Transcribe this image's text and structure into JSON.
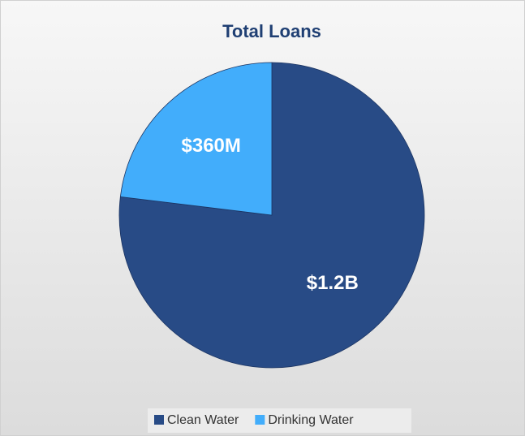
{
  "chart_data": {
    "type": "pie",
    "title": "Total Loans",
    "categories": [
      "Clean Water",
      "Drinking Water"
    ],
    "values": [
      1200000000,
      360000000
    ],
    "value_labels": [
      "$1.2B",
      "$360M"
    ],
    "colors": [
      "#284b86",
      "#42adfb"
    ],
    "legend": "bottom"
  }
}
